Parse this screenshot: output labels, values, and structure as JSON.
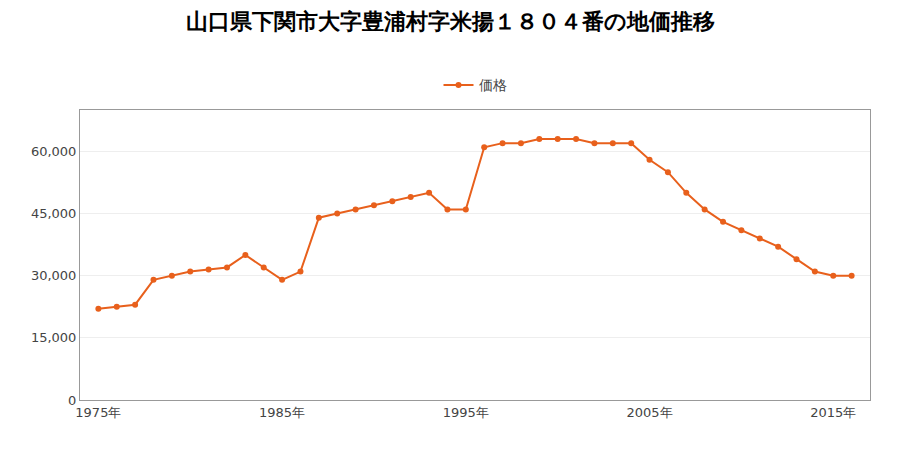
{
  "chart_data": {
    "type": "line",
    "title": "山口県下関市大字豊浦村字米揚１８０４番の地価推移",
    "x": [
      1975,
      1976,
      1977,
      1978,
      1979,
      1980,
      1981,
      1982,
      1983,
      1984,
      1985,
      1986,
      1987,
      1988,
      1989,
      1990,
      1991,
      1992,
      1993,
      1994,
      1995,
      1996,
      1997,
      1998,
      1999,
      2000,
      2001,
      2002,
      2003,
      2004,
      2005,
      2006,
      2007,
      2008,
      2009,
      2010,
      2011,
      2012,
      2013,
      2014,
      2015,
      2016
    ],
    "series": [
      {
        "name": "価格",
        "color": "#E8601C",
        "marker": "circle",
        "line_style": "solid",
        "values": [
          22000,
          22500,
          23000,
          29000,
          30000,
          31000,
          31500,
          32000,
          35000,
          32000,
          29000,
          31000,
          44000,
          45000,
          46000,
          47000,
          48000,
          49000,
          50000,
          46000,
          46000,
          61000,
          62000,
          62000,
          63000,
          63000,
          63000,
          62000,
          62000,
          62000,
          58000,
          55000,
          50000,
          46000,
          43000,
          41000,
          39000,
          37000,
          34000,
          31000,
          30000,
          30000
        ]
      }
    ],
    "xlim": [
      1974,
      2017
    ],
    "ylim": [
      0,
      70000
    ],
    "xticks": [
      {
        "value": 1975,
        "label": "1975年"
      },
      {
        "value": 1985,
        "label": "1985年"
      },
      {
        "value": 1995,
        "label": "1995年"
      },
      {
        "value": 2005,
        "label": "2005年"
      },
      {
        "value": 2015,
        "label": "2015年"
      }
    ],
    "yticks": [
      0,
      {
        "value": 15000,
        "label": "15,000"
      },
      {
        "value": 30000,
        "label": "30,000"
      },
      {
        "value": 45000,
        "label": "45,000"
      },
      {
        "value": 60000,
        "label": "60,000"
      }
    ],
    "grid": true,
    "legend": "upper center"
  }
}
